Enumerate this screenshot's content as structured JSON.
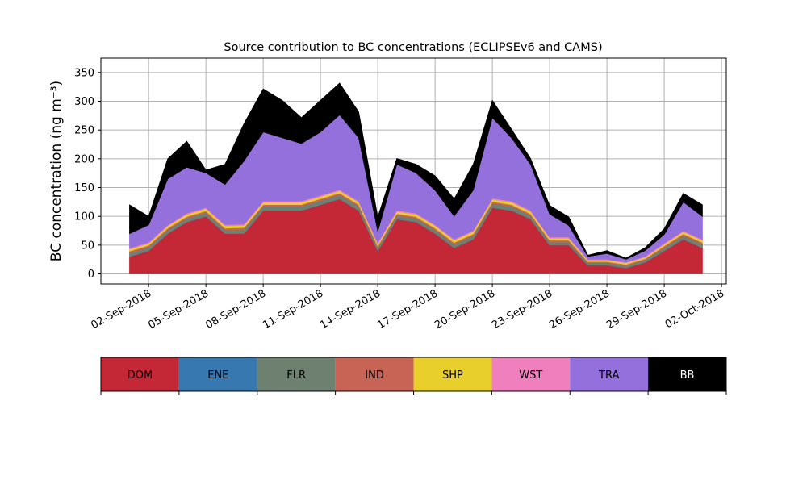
{
  "chart_data": {
    "type": "stacked_area",
    "title": "Source contribution to BC concentrations (ECLIPSEv6 and CAMS)",
    "y_label": "BC concentration (ng m⁻³)",
    "x": [
      "2018-09-01",
      "2018-09-02",
      "2018-09-03",
      "2018-09-04",
      "2018-09-05",
      "2018-09-06",
      "2018-09-07",
      "2018-09-08",
      "2018-09-09",
      "2018-09-10",
      "2018-09-11",
      "2018-09-12",
      "2018-09-13",
      "2018-09-14",
      "2018-09-15",
      "2018-09-16",
      "2018-09-17",
      "2018-09-18",
      "2018-09-19",
      "2018-09-20",
      "2018-09-21",
      "2018-09-22",
      "2018-09-23",
      "2018-09-24",
      "2018-09-25",
      "2018-09-26",
      "2018-09-27",
      "2018-09-28",
      "2018-09-29",
      "2018-09-30",
      "2018-10-01"
    ],
    "series": [
      {
        "name": "DOM",
        "color": "#c42836",
        "values": [
          30,
          40,
          70,
          90,
          100,
          70,
          70,
          110,
          110,
          110,
          120,
          130,
          110,
          40,
          95,
          90,
          70,
          45,
          60,
          115,
          110,
          95,
          50,
          50,
          15,
          15,
          10,
          20,
          40,
          60,
          45
        ]
      },
      {
        "name": "ENE",
        "color": "#3778b0",
        "values": [
          0.5,
          0.5,
          0.5,
          0.5,
          0.5,
          0.5,
          0.5,
          0.5,
          0.5,
          0.5,
          0.5,
          0.5,
          0.5,
          0.5,
          0.5,
          0.5,
          0.5,
          0.5,
          0.5,
          0.5,
          0.5,
          0.5,
          0.5,
          0.5,
          0.5,
          0.5,
          0.5,
          0.5,
          0.5,
          0.5,
          0.5
        ]
      },
      {
        "name": "FLR",
        "color": "#6e8070",
        "values": [
          6,
          6,
          6,
          6,
          6,
          6,
          7,
          7,
          7,
          7,
          7,
          7,
          7,
          5,
          6,
          6,
          6,
          6,
          6,
          7,
          7,
          6,
          5,
          5,
          4,
          4,
          4,
          4,
          5,
          6,
          6
        ]
      },
      {
        "name": "IND",
        "color": "#c86455",
        "values": [
          3,
          3,
          3,
          3,
          3,
          3,
          3,
          3,
          3,
          3,
          3,
          3,
          3,
          3,
          3,
          3,
          3,
          3,
          3,
          3,
          3,
          3,
          3,
          3,
          2,
          2,
          2,
          2,
          3,
          3,
          3
        ]
      },
      {
        "name": "SHP",
        "color": "#e8cf2c",
        "values": [
          3.5,
          3.5,
          3.5,
          4,
          4,
          4,
          4,
          4,
          4,
          4,
          4,
          4,
          4,
          3.5,
          4,
          4,
          4,
          4,
          4,
          4,
          4,
          4,
          3.5,
          3.5,
          2.5,
          2.5,
          2.5,
          2.5,
          3,
          3.5,
          3.5
        ]
      },
      {
        "name": "WST",
        "color": "#f07fbe",
        "values": [
          2,
          2,
          2,
          2,
          2,
          2,
          2,
          2,
          2,
          2,
          2,
          2,
          2,
          2,
          2,
          2,
          2,
          2,
          2,
          2,
          2,
          2,
          2,
          2,
          1.5,
          1.5,
          1.5,
          1.5,
          2,
          2,
          2
        ]
      },
      {
        "name": "TRA",
        "color": "#9370db",
        "values": [
          25,
          30,
          80,
          80,
          60,
          70,
          110,
          120,
          110,
          100,
          110,
          130,
          110,
          20,
          80,
          70,
          60,
          40,
          70,
          140,
          110,
          80,
          40,
          20,
          5,
          10,
          5,
          10,
          15,
          50,
          40
        ]
      },
      {
        "name": "BB",
        "color": "#000000",
        "values": [
          50,
          15,
          35,
          45,
          5,
          35,
          65,
          75,
          65,
          45,
          55,
          55,
          45,
          25,
          10,
          15,
          25,
          30,
          45,
          30,
          15,
          10,
          15,
          15,
          2,
          5,
          2,
          5,
          10,
          15,
          20
        ]
      }
    ],
    "xlim": [
      "2018-08-30T12:00",
      "2018-10-02T06:00"
    ],
    "xticks": [
      {
        "value": "2018-09-02",
        "label": "02-Sep-2018"
      },
      {
        "value": "2018-09-05",
        "label": "05-Sep-2018"
      },
      {
        "value": "2018-09-08",
        "label": "08-Sep-2018"
      },
      {
        "value": "2018-09-11",
        "label": "11-Sep-2018"
      },
      {
        "value": "2018-09-14",
        "label": "14-Sep-2018"
      },
      {
        "value": "2018-09-17",
        "label": "17-Sep-2018"
      },
      {
        "value": "2018-09-20",
        "label": "20-Sep-2018"
      },
      {
        "value": "2018-09-23",
        "label": "23-Sep-2018"
      },
      {
        "value": "2018-09-26",
        "label": "26-Sep-2018"
      },
      {
        "value": "2018-09-29",
        "label": "29-Sep-2018"
      },
      {
        "value": "2018-10-02",
        "label": "02-Oct-2018"
      }
    ],
    "ylim": [
      -17.5,
      375
    ],
    "yticks": [
      0,
      50,
      100,
      150,
      200,
      250,
      300,
      350
    ],
    "grid": true,
    "legend": "bottom"
  }
}
